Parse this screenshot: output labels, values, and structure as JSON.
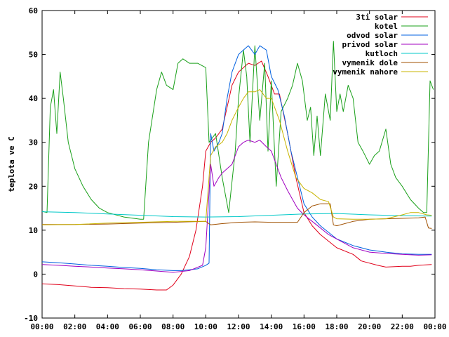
{
  "chart_data": {
    "type": "line",
    "ylabel": "teplota ve C",
    "xlabel": "",
    "ylim": [
      -10,
      60
    ],
    "y_ticks": [
      "-10",
      "0",
      "10",
      "20",
      "30",
      "40",
      "50",
      "60"
    ],
    "x_range": [
      0,
      24
    ],
    "x_ticks": [
      "00:00",
      "02:00",
      "04:00",
      "06:00",
      "08:00",
      "10:00",
      "12:00",
      "14:00",
      "16:00",
      "18:00",
      "20:00",
      "22:00",
      "00:00"
    ],
    "grid": false,
    "legend_position": "top-right",
    "series": [
      {
        "name": "3ti solar",
        "color": "#e0001a",
        "points": [
          [
            0,
            -2.2
          ],
          [
            1,
            -2.4
          ],
          [
            2,
            -2.7
          ],
          [
            3,
            -3.0
          ],
          [
            4,
            -3.1
          ],
          [
            5,
            -3.3
          ],
          [
            6,
            -3.4
          ],
          [
            7,
            -3.6
          ],
          [
            7.6,
            -3.6
          ],
          [
            8,
            -2.5
          ],
          [
            8.5,
            0
          ],
          [
            9,
            4
          ],
          [
            9.4,
            10
          ],
          [
            9.8,
            20
          ],
          [
            10,
            28
          ],
          [
            10.3,
            30
          ],
          [
            10.6,
            31
          ],
          [
            11,
            33
          ],
          [
            11.3,
            38
          ],
          [
            11.6,
            43
          ],
          [
            12,
            46
          ],
          [
            12.3,
            47
          ],
          [
            12.6,
            48
          ],
          [
            13,
            47.5
          ],
          [
            13.4,
            48.5
          ],
          [
            13.8,
            45
          ],
          [
            14.2,
            41
          ],
          [
            14.5,
            41
          ],
          [
            15,
            32
          ],
          [
            15.5,
            22
          ],
          [
            16,
            14
          ],
          [
            16.5,
            11
          ],
          [
            17,
            9
          ],
          [
            17.5,
            7.5
          ],
          [
            18,
            6
          ],
          [
            19,
            4.5
          ],
          [
            19.5,
            3
          ],
          [
            20.5,
            2
          ],
          [
            21,
            1.6
          ],
          [
            22,
            1.8
          ],
          [
            22.5,
            1.8
          ],
          [
            23,
            2
          ],
          [
            23.8,
            2.2
          ]
        ]
      },
      {
        "name": "kotel",
        "color": "#1aa01a",
        "points": [
          [
            0,
            14.3
          ],
          [
            0.3,
            14
          ],
          [
            0.5,
            38
          ],
          [
            0.7,
            42
          ],
          [
            0.9,
            32
          ],
          [
            1.1,
            46
          ],
          [
            1.3,
            40
          ],
          [
            1.6,
            30
          ],
          [
            2,
            24
          ],
          [
            2.5,
            20
          ],
          [
            3,
            17
          ],
          [
            3.5,
            15
          ],
          [
            4,
            14
          ],
          [
            5,
            13
          ],
          [
            6,
            12.5
          ],
          [
            6.2,
            12.5
          ],
          [
            6.5,
            30
          ],
          [
            7,
            42
          ],
          [
            7.3,
            46
          ],
          [
            7.6,
            43
          ],
          [
            8,
            42
          ],
          [
            8.3,
            48
          ],
          [
            8.6,
            49
          ],
          [
            9,
            48
          ],
          [
            9.5,
            48
          ],
          [
            10,
            47
          ],
          [
            10.2,
            30
          ],
          [
            10.6,
            32
          ],
          [
            11,
            22
          ],
          [
            11.4,
            14
          ],
          [
            11.8,
            28
          ],
          [
            12,
            40
          ],
          [
            12.3,
            51
          ],
          [
            12.5,
            45
          ],
          [
            12.7,
            30
          ],
          [
            13,
            52
          ],
          [
            13.3,
            35
          ],
          [
            13.6,
            48
          ],
          [
            13.8,
            28
          ],
          [
            14,
            44
          ],
          [
            14.3,
            20
          ],
          [
            14.6,
            37
          ],
          [
            15,
            40
          ],
          [
            15.3,
            43
          ],
          [
            15.6,
            48
          ],
          [
            15.9,
            44
          ],
          [
            16.2,
            35
          ],
          [
            16.4,
            38
          ],
          [
            16.6,
            27
          ],
          [
            16.8,
            36
          ],
          [
            17,
            27
          ],
          [
            17.3,
            41
          ],
          [
            17.6,
            35
          ],
          [
            17.8,
            53
          ],
          [
            18,
            37
          ],
          [
            18.2,
            41
          ],
          [
            18.4,
            37
          ],
          [
            18.7,
            43
          ],
          [
            19,
            40
          ],
          [
            19.3,
            30
          ],
          [
            19.6,
            28
          ],
          [
            20,
            25
          ],
          [
            20.3,
            27
          ],
          [
            20.6,
            28
          ],
          [
            21,
            33
          ],
          [
            21.3,
            25
          ],
          [
            21.6,
            22
          ],
          [
            22,
            20
          ],
          [
            22.5,
            17
          ],
          [
            23,
            15
          ],
          [
            23.3,
            14
          ],
          [
            23.5,
            14
          ],
          [
            23.7,
            44
          ],
          [
            23.9,
            42
          ]
        ]
      },
      {
        "name": "odvod solar",
        "color": "#0060e0",
        "points": [
          [
            0,
            2.8
          ],
          [
            1,
            2.6
          ],
          [
            2,
            2.3
          ],
          [
            3,
            2.0
          ],
          [
            4,
            1.8
          ],
          [
            5,
            1.5
          ],
          [
            6,
            1.3
          ],
          [
            7,
            1.0
          ],
          [
            8,
            0.8
          ],
          [
            8.5,
            0.8
          ],
          [
            9,
            1.0
          ],
          [
            9.5,
            1.2
          ],
          [
            10,
            2.0
          ],
          [
            10.2,
            2.5
          ],
          [
            10.3,
            32
          ],
          [
            10.5,
            28
          ],
          [
            10.8,
            30
          ],
          [
            11,
            32
          ],
          [
            11.3,
            40
          ],
          [
            11.6,
            46
          ],
          [
            12,
            50
          ],
          [
            12.3,
            51
          ],
          [
            12.6,
            52
          ],
          [
            13,
            50
          ],
          [
            13.3,
            52
          ],
          [
            13.7,
            51
          ],
          [
            14,
            45
          ],
          [
            14.4,
            42
          ],
          [
            14.8,
            36
          ],
          [
            15.2,
            28
          ],
          [
            15.6,
            22
          ],
          [
            16,
            16
          ],
          [
            16.5,
            13
          ],
          [
            17,
            11
          ],
          [
            17.5,
            9.5
          ],
          [
            18,
            8
          ],
          [
            19,
            6.5
          ],
          [
            20,
            5.5
          ],
          [
            21,
            5
          ],
          [
            22,
            4.6
          ],
          [
            23,
            4.5
          ],
          [
            23.8,
            4.5
          ]
        ]
      },
      {
        "name": "privod solar",
        "color": "#a000c0",
        "points": [
          [
            0,
            2.2
          ],
          [
            1,
            2.0
          ],
          [
            2,
            1.8
          ],
          [
            3,
            1.6
          ],
          [
            4,
            1.4
          ],
          [
            5,
            1.2
          ],
          [
            6,
            1.0
          ],
          [
            7,
            0.7
          ],
          [
            8,
            0.4
          ],
          [
            9,
            0.8
          ],
          [
            9.8,
            2
          ],
          [
            10,
            6
          ],
          [
            10.3,
            25
          ],
          [
            10.5,
            20
          ],
          [
            10.8,
            22
          ],
          [
            11,
            23
          ],
          [
            11.3,
            24
          ],
          [
            11.6,
            25
          ],
          [
            12,
            29
          ],
          [
            12.3,
            30
          ],
          [
            12.6,
            30.5
          ],
          [
            13,
            30
          ],
          [
            13.3,
            30.5
          ],
          [
            13.7,
            29
          ],
          [
            14,
            28
          ],
          [
            14.3,
            25
          ],
          [
            14.6,
            22
          ],
          [
            15,
            19
          ],
          [
            15.3,
            17
          ],
          [
            15.6,
            15
          ],
          [
            16,
            13.5
          ],
          [
            16.5,
            12
          ],
          [
            17,
            10.5
          ],
          [
            17.5,
            9
          ],
          [
            18,
            8
          ],
          [
            19,
            6
          ],
          [
            20,
            5
          ],
          [
            21,
            4.7
          ],
          [
            22,
            4.5
          ],
          [
            23,
            4.3
          ],
          [
            23.8,
            4.4
          ]
        ]
      },
      {
        "name": "kutloch",
        "color": "#00c8c8",
        "points": [
          [
            0,
            14.2
          ],
          [
            2,
            14
          ],
          [
            4,
            13.7
          ],
          [
            6,
            13.4
          ],
          [
            8,
            13.1
          ],
          [
            10,
            13
          ],
          [
            12,
            13.1
          ],
          [
            14,
            13.4
          ],
          [
            16,
            13.7
          ],
          [
            18,
            13.8
          ],
          [
            20,
            13.5
          ],
          [
            22,
            13.3
          ],
          [
            23.8,
            13.2
          ]
        ]
      },
      {
        "name": "vymenik dole",
        "color": "#a05000",
        "points": [
          [
            0,
            11.3
          ],
          [
            2,
            11.3
          ],
          [
            4,
            11.4
          ],
          [
            6,
            11.6
          ],
          [
            8,
            11.8
          ],
          [
            10,
            12
          ],
          [
            10.3,
            11.2
          ],
          [
            11,
            11.5
          ],
          [
            12,
            11.8
          ],
          [
            13,
            11.9
          ],
          [
            14,
            11.8
          ],
          [
            15,
            11.8
          ],
          [
            15.6,
            11.8
          ],
          [
            16,
            14
          ],
          [
            16.5,
            15.5
          ],
          [
            17,
            16
          ],
          [
            17.6,
            16
          ],
          [
            17.8,
            11.2
          ],
          [
            18,
            11
          ],
          [
            19,
            12
          ],
          [
            20,
            12.5
          ],
          [
            21,
            12.6
          ],
          [
            22,
            12.7
          ],
          [
            23,
            12.8
          ],
          [
            23.4,
            13
          ],
          [
            23.6,
            10.5
          ],
          [
            23.8,
            10.4
          ]
        ]
      },
      {
        "name": "vymenik nahore",
        "color": "#c8b400",
        "points": [
          [
            0,
            11.2
          ],
          [
            2,
            11.3
          ],
          [
            4,
            11.6
          ],
          [
            6,
            11.8
          ],
          [
            8,
            12
          ],
          [
            10,
            12
          ],
          [
            10.3,
            27
          ],
          [
            10.6,
            29
          ],
          [
            11,
            30
          ],
          [
            11.3,
            32
          ],
          [
            11.6,
            35
          ],
          [
            12,
            38
          ],
          [
            12.3,
            40
          ],
          [
            12.6,
            41.5
          ],
          [
            13,
            41.5
          ],
          [
            13.3,
            42
          ],
          [
            13.7,
            40
          ],
          [
            14,
            40
          ],
          [
            14.5,
            35
          ],
          [
            15,
            28
          ],
          [
            15.5,
            22
          ],
          [
            16,
            19.5
          ],
          [
            16.5,
            18.5
          ],
          [
            17,
            17
          ],
          [
            17.5,
            16.5
          ],
          [
            17.8,
            13
          ],
          [
            18,
            12.6
          ],
          [
            19,
            12.5
          ],
          [
            20,
            12.5
          ],
          [
            21,
            12.6
          ],
          [
            22,
            13.5
          ],
          [
            22.5,
            14
          ],
          [
            23,
            14
          ],
          [
            23.5,
            13.5
          ],
          [
            23.8,
            13.4
          ]
        ]
      }
    ]
  }
}
